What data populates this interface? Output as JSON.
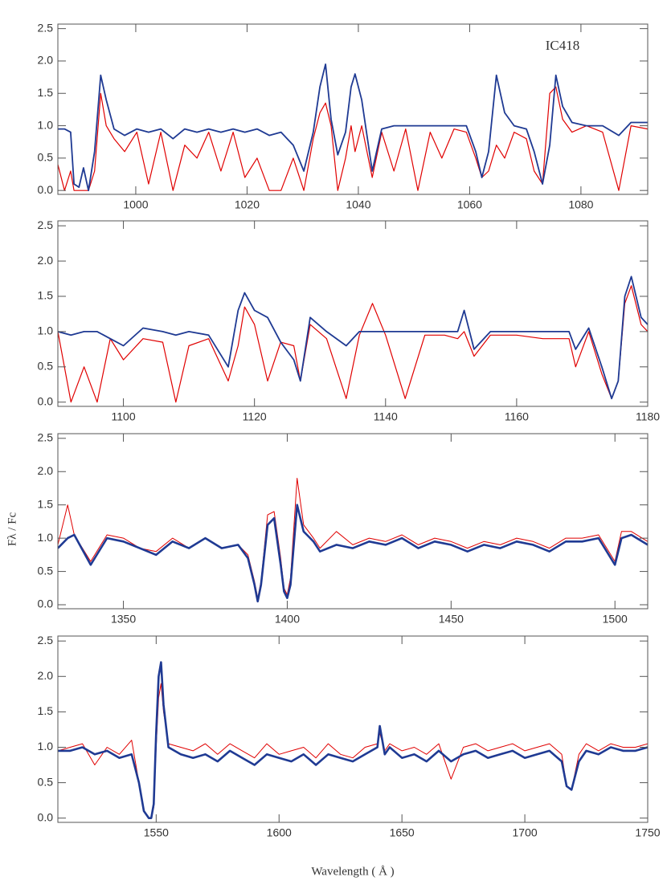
{
  "chart_data": [
    {
      "type": "line",
      "annotation": "IC418",
      "x": [
        986,
        987.2,
        988.3,
        988.9,
        989.8,
        990.6,
        991.5,
        992.6,
        993.7,
        994.7,
        996.1,
        998.0,
        1000.2,
        1002.3,
        1004.5,
        1006.7,
        1008.8,
        1011.0,
        1013.1,
        1015.3,
        1017.5,
        1019.6,
        1021.8,
        1024.0,
        1026.1,
        1028.3,
        1030.2,
        1031.9,
        1033.1,
        1034.1,
        1035.1,
        1036.3,
        1037.7,
        1038.7,
        1039.4,
        1040.6,
        1042.5,
        1044.2,
        1046.4,
        1048.5,
        1050.7,
        1052.9,
        1055.0,
        1057.2,
        1059.4,
        1061.1,
        1062.2,
        1063.4,
        1064.8,
        1066.3,
        1068.0,
        1070.2,
        1071.6,
        1073.1,
        1074.4,
        1075.5,
        1076.7,
        1078.4,
        1081.0,
        1083.9,
        1086.8,
        1089.0,
        1092.0
      ],
      "series": [
        {
          "color": "#e00000",
          "linewidth": 1.2,
          "values": [
            0.4,
            0.0,
            0.3,
            0.0,
            0.0,
            0.0,
            0.0,
            0.3,
            1.5,
            1.0,
            0.8,
            0.6,
            0.9,
            0.1,
            0.9,
            0.0,
            0.7,
            0.5,
            0.9,
            0.3,
            0.9,
            0.2,
            0.5,
            0.0,
            0.0,
            0.5,
            0.0,
            0.8,
            1.2,
            1.35,
            1.0,
            0.0,
            0.5,
            1.0,
            0.6,
            1.0,
            0.2,
            0.9,
            0.3,
            0.95,
            0.0,
            0.9,
            0.5,
            0.95,
            0.9,
            0.5,
            0.2,
            0.3,
            0.7,
            0.5,
            0.9,
            0.8,
            0.3,
            0.1,
            1.5,
            1.6,
            1.1,
            0.9,
            1.0,
            0.9,
            0.0,
            1.0,
            0.95
          ]
        },
        {
          "color": "#1f3a93",
          "linewidth": 1.8,
          "values": [
            0.95,
            0.95,
            0.9,
            0.1,
            0.05,
            0.35,
            0.0,
            0.6,
            1.78,
            1.4,
            0.95,
            0.85,
            0.95,
            0.9,
            0.95,
            0.8,
            0.95,
            0.9,
            0.95,
            0.9,
            0.95,
            0.9,
            0.95,
            0.85,
            0.9,
            0.7,
            0.3,
            0.9,
            1.6,
            1.95,
            1.1,
            0.55,
            0.9,
            1.6,
            1.8,
            1.4,
            0.3,
            0.95,
            1.0,
            1.0,
            1.0,
            1.0,
            1.0,
            1.0,
            1.0,
            0.6,
            0.2,
            0.6,
            1.78,
            1.2,
            1.0,
            0.95,
            0.6,
            0.1,
            0.7,
            1.78,
            1.3,
            1.05,
            1.0,
            1.0,
            0.85,
            1.05,
            1.05
          ]
        }
      ],
      "xlim": [
        986,
        1092
      ],
      "xticks": [
        1000,
        1020,
        1040,
        1060,
        1080
      ],
      "ylim": [
        -0.06,
        2.57
      ],
      "yticks": [
        {
          "value": 0,
          "label": "0.0"
        },
        0.5,
        {
          "value": 1,
          "label": "1.0"
        },
        1.5,
        {
          "value": 2,
          "label": "2.0"
        },
        2.5
      ]
    },
    {
      "type": "line",
      "ylabel": "Fλ / Fc",
      "x": [
        1090,
        1092,
        1094,
        1096,
        1098,
        1100,
        1103,
        1106,
        1108,
        1110,
        1113,
        1116,
        1117.5,
        1118.5,
        1120,
        1122,
        1124,
        1126,
        1127,
        1128.5,
        1131,
        1134,
        1136,
        1138,
        1140,
        1143,
        1146,
        1149,
        1151,
        1152,
        1153.5,
        1156,
        1160,
        1164,
        1168,
        1169,
        1171,
        1173,
        1174.5,
        1175.5,
        1176.5,
        1177.5,
        1179,
        1180
      ],
      "series": [
        {
          "color": "#e00000",
          "linewidth": 1.2,
          "values": [
            1.0,
            0.0,
            0.5,
            0.0,
            0.9,
            0.6,
            0.9,
            0.85,
            0.0,
            0.8,
            0.9,
            0.3,
            0.8,
            1.35,
            1.1,
            0.3,
            0.85,
            0.8,
            0.3,
            1.1,
            0.9,
            0.05,
            0.95,
            1.4,
            0.95,
            0.05,
            0.95,
            0.95,
            0.9,
            1.0,
            0.65,
            0.95,
            0.95,
            0.9,
            0.9,
            0.5,
            1.0,
            0.4,
            0.05,
            0.3,
            1.4,
            1.65,
            1.1,
            1.0
          ]
        },
        {
          "color": "#1f3a93",
          "linewidth": 1.8,
          "values": [
            1.0,
            0.95,
            1.0,
            1.0,
            0.9,
            0.8,
            1.05,
            1.0,
            0.95,
            1.0,
            0.95,
            0.5,
            1.3,
            1.55,
            1.3,
            1.2,
            0.85,
            0.6,
            0.3,
            1.2,
            1.0,
            0.8,
            1.0,
            1.0,
            1.0,
            1.0,
            1.0,
            1.0,
            1.0,
            1.3,
            0.75,
            1.0,
            1.0,
            1.0,
            1.0,
            0.75,
            1.05,
            0.5,
            0.05,
            0.3,
            1.5,
            1.78,
            1.2,
            1.1
          ]
        }
      ],
      "xlim": [
        1090,
        1180
      ],
      "xticks": [
        1100,
        1120,
        1140,
        1160,
        1180
      ],
      "ylim": [
        -0.06,
        2.57
      ],
      "yticks": [
        {
          "value": 0,
          "label": "0.0"
        },
        0.5,
        {
          "value": 1,
          "label": "1.0"
        },
        1.5,
        {
          "value": 2,
          "label": "2.0"
        },
        2.5
      ]
    },
    {
      "type": "line",
      "x": [
        1330,
        1333,
        1335,
        1340,
        1345,
        1350,
        1355,
        1360,
        1365,
        1370,
        1375,
        1380,
        1385,
        1388,
        1390,
        1391,
        1392,
        1394,
        1396,
        1398,
        1399,
        1400,
        1401,
        1403,
        1405,
        1408,
        1410,
        1415,
        1420,
        1425,
        1430,
        1435,
        1440,
        1445,
        1450,
        1455,
        1460,
        1465,
        1470,
        1475,
        1480,
        1485,
        1490,
        1495,
        1500,
        1502,
        1505,
        1510
      ],
      "series": [
        {
          "color": "#e00000",
          "linewidth": 1.0,
          "values": [
            0.9,
            1.5,
            1.05,
            0.65,
            1.05,
            1.0,
            0.85,
            0.8,
            1.0,
            0.85,
            1.0,
            0.85,
            0.9,
            0.75,
            0.35,
            0.1,
            0.35,
            1.35,
            1.4,
            0.7,
            0.25,
            0.15,
            0.4,
            1.9,
            1.2,
            1.0,
            0.85,
            1.1,
            0.9,
            1.0,
            0.95,
            1.05,
            0.9,
            1.0,
            0.95,
            0.85,
            0.95,
            0.9,
            1.0,
            0.95,
            0.85,
            1.0,
            1.0,
            1.05,
            0.65,
            1.1,
            1.1,
            0.95
          ]
        },
        {
          "color": "#1f3a93",
          "linewidth": 2.6,
          "values": [
            0.85,
            1.0,
            1.05,
            0.6,
            1.0,
            0.95,
            0.85,
            0.75,
            0.95,
            0.85,
            1.0,
            0.85,
            0.9,
            0.7,
            0.3,
            0.05,
            0.3,
            1.2,
            1.3,
            0.6,
            0.2,
            0.1,
            0.3,
            1.5,
            1.1,
            0.95,
            0.8,
            0.9,
            0.85,
            0.95,
            0.9,
            1.0,
            0.85,
            0.95,
            0.9,
            0.8,
            0.9,
            0.85,
            0.95,
            0.9,
            0.8,
            0.95,
            0.95,
            1.0,
            0.6,
            1.0,
            1.05,
            0.9
          ]
        }
      ],
      "xlim": [
        1330,
        1510
      ],
      "xticks": [
        1350,
        1400,
        1450,
        1500
      ],
      "ylim": [
        -0.06,
        2.57
      ],
      "yticks": [
        {
          "value": 0,
          "label": "0.0"
        },
        0.5,
        {
          "value": 1,
          "label": "1.0"
        },
        1.5,
        {
          "value": 2,
          "label": "2.0"
        },
        2.5
      ]
    },
    {
      "type": "line",
      "xlabel": "Wavelength ( Å )",
      "x": [
        1510,
        1515,
        1520,
        1525,
        1530,
        1535,
        1540,
        1543,
        1545,
        1547,
        1548,
        1549,
        1550,
        1551,
        1552,
        1553,
        1555,
        1560,
        1565,
        1570,
        1575,
        1580,
        1585,
        1590,
        1595,
        1600,
        1605,
        1610,
        1615,
        1620,
        1625,
        1630,
        1635,
        1640,
        1641,
        1643,
        1645,
        1650,
        1655,
        1660,
        1665,
        1670,
        1675,
        1680,
        1685,
        1690,
        1695,
        1700,
        1705,
        1710,
        1715,
        1717,
        1719,
        1722,
        1725,
        1730,
        1735,
        1740,
        1745,
        1750
      ],
      "series": [
        {
          "color": "#e00000",
          "linewidth": 1.0,
          "values": [
            0.95,
            1.0,
            1.05,
            0.75,
            1.0,
            0.9,
            1.1,
            0.5,
            0.1,
            0.0,
            0.0,
            0.15,
            1.0,
            1.7,
            1.9,
            1.5,
            1.05,
            1.0,
            0.95,
            1.05,
            0.9,
            1.05,
            0.95,
            0.85,
            1.05,
            0.9,
            0.95,
            1.0,
            0.85,
            1.05,
            0.9,
            0.85,
            1.0,
            1.05,
            1.2,
            0.95,
            1.05,
            0.95,
            1.0,
            0.9,
            1.05,
            0.55,
            1.0,
            1.05,
            0.95,
            1.0,
            1.05,
            0.95,
            1.0,
            1.05,
            0.9,
            0.45,
            0.4,
            0.9,
            1.05,
            0.95,
            1.05,
            1.0,
            1.0,
            1.05
          ]
        },
        {
          "color": "#1f3a93",
          "linewidth": 2.6,
          "values": [
            0.95,
            0.95,
            1.0,
            0.9,
            0.95,
            0.85,
            0.9,
            0.5,
            0.1,
            0.0,
            0.0,
            0.2,
            1.2,
            2.0,
            2.2,
            1.6,
            1.0,
            0.9,
            0.85,
            0.9,
            0.8,
            0.95,
            0.85,
            0.75,
            0.9,
            0.85,
            0.8,
            0.9,
            0.75,
            0.9,
            0.85,
            0.8,
            0.9,
            1.0,
            1.3,
            0.9,
            1.0,
            0.85,
            0.9,
            0.8,
            0.95,
            0.8,
            0.9,
            0.95,
            0.85,
            0.9,
            0.95,
            0.85,
            0.9,
            0.95,
            0.8,
            0.45,
            0.4,
            0.8,
            0.95,
            0.9,
            1.0,
            0.95,
            0.95,
            1.0
          ]
        }
      ],
      "xlim": [
        1510,
        1750
      ],
      "xticks": [
        1550,
        1600,
        1650,
        1700,
        1750
      ],
      "ylim": [
        -0.06,
        2.57
      ],
      "yticks": [
        {
          "value": 0,
          "label": "0.0"
        },
        0.5,
        {
          "value": 1,
          "label": "1.0"
        },
        1.5,
        {
          "value": 2,
          "label": "2.0"
        },
        2.5
      ]
    }
  ]
}
